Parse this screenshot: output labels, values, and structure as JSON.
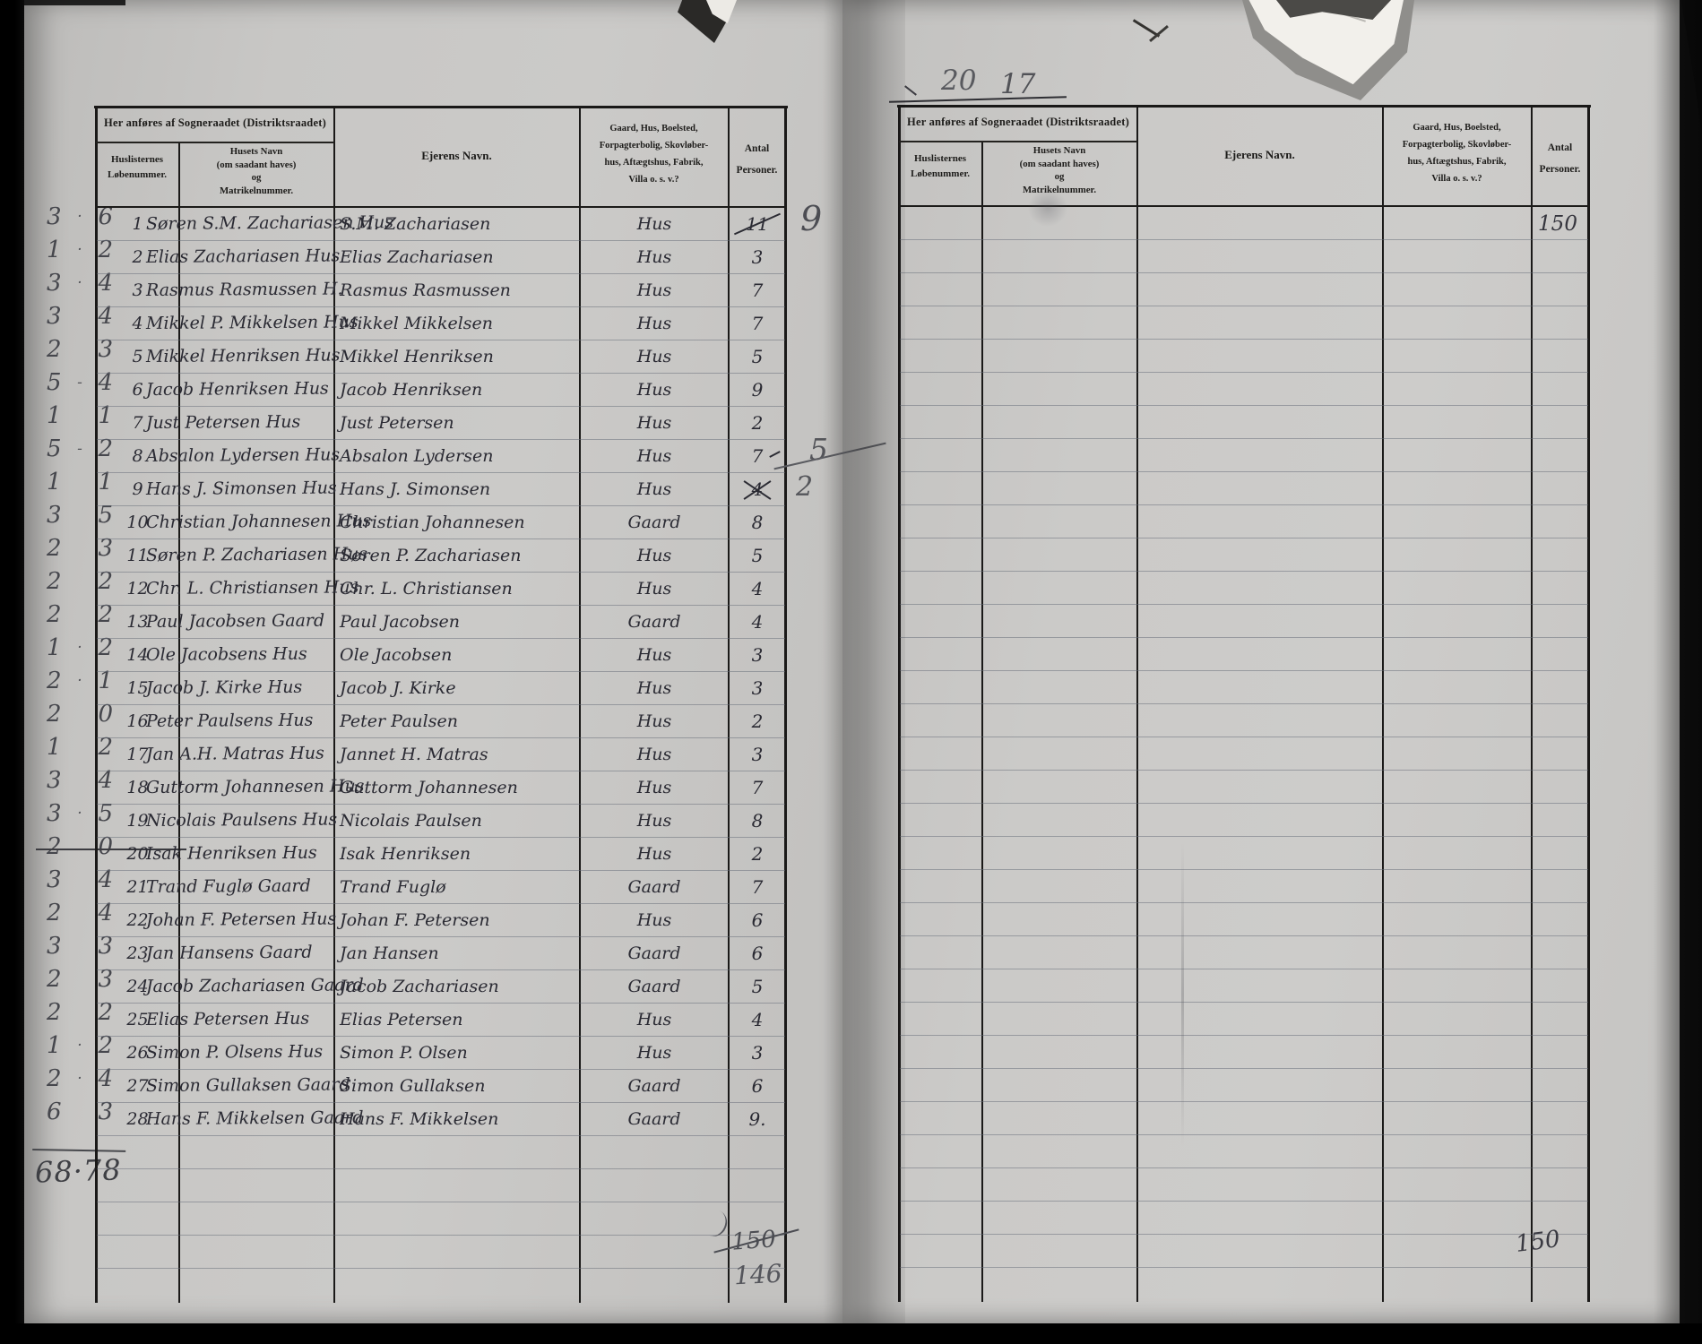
{
  "scan": {
    "paper_color": "#c8c7c5",
    "ink_color": "#1d1c1a",
    "handwriting_color": "#2a2a33",
    "pencil_color": "#54555a",
    "rule_color": "#646a76"
  },
  "column_headers": {
    "sogneraadet": "Her anføres af Sogneraadet (Distriktsraadet)",
    "huslisternes_1": "Huslisternes",
    "huslisternes_2": "Løbenummer.",
    "husets_navn_1": "Husets Navn",
    "husets_navn_2": "(om saadant haves)",
    "husets_navn_3": "og",
    "husets_navn_4": "Matrikelnummer.",
    "ejerens_navn": "Ejerens Navn.",
    "type_1": "Gaard, Hus, Boelsted,",
    "type_2": "Forpagterbolig, Skovløber-",
    "type_3": "hus, Aftægtshus, Fabrik,",
    "type_4": "Villa o. s. v.?",
    "antal_1": "Antal",
    "antal_2": "Personer."
  },
  "left_page": {
    "rows": [
      {
        "nr": "1",
        "house": "Søren S.M. Zachariasen Hus",
        "owner": "S.M. Zachariasen",
        "type": "Hus",
        "antal": "11",
        "mark": "strike",
        "pencil": "9"
      },
      {
        "nr": "2",
        "house": "Elias Zachariasen Hus",
        "owner": "Elias Zachariasen",
        "type": "Hus",
        "antal": "3"
      },
      {
        "nr": "3",
        "house": "Rasmus Rasmussen H.",
        "owner": "Rasmus Rasmussen",
        "type": "Hus",
        "antal": "7"
      },
      {
        "nr": "4",
        "house": "Mikkel P. Mikkelsen Hus",
        "owner": "Mikkel Mikkelsen",
        "type": "Hus",
        "antal": "7"
      },
      {
        "nr": "5",
        "house": "Mikkel Henriksen Hus",
        "owner": "Mikkel Henriksen",
        "type": "Hus",
        "antal": "5"
      },
      {
        "nr": "6",
        "house": "Jacob Henriksen Hus",
        "owner": "Jacob Henriksen",
        "type": "Hus",
        "antal": "9"
      },
      {
        "nr": "7",
        "house": "Just Petersen Hus",
        "owner": "Just Petersen",
        "type": "Hus",
        "antal": "2"
      },
      {
        "nr": "8",
        "house": "Absalon Lydersen Hus",
        "owner": "Absalon Lydersen",
        "type": "Hus",
        "antal": "7",
        "mark": "dash",
        "pencil": "5"
      },
      {
        "nr": "9",
        "house": "Hans J. Simonsen Hus",
        "owner": "Hans J. Simonsen",
        "type": "Hus",
        "antal": "4",
        "mark": "x",
        "pencil": "2"
      },
      {
        "nr": "10",
        "house": "Christian Johannesen Hus",
        "owner": "Christian Johannesen",
        "type": "Gaard",
        "antal": "8"
      },
      {
        "nr": "11",
        "house": "Søren P. Zachariasen Hus",
        "owner": "Søren P. Zachariasen",
        "type": "Hus",
        "antal": "5"
      },
      {
        "nr": "12",
        "house": "Chr. L. Christiansen Hus",
        "owner": "Chr. L. Christiansen",
        "type": "Hus",
        "antal": "4"
      },
      {
        "nr": "13",
        "house": "Paul Jacobsen Gaard",
        "owner": "Paul Jacobsen",
        "type": "Gaard",
        "antal": "4"
      },
      {
        "nr": "14",
        "house": "Ole Jacobsens Hus",
        "owner": "Ole Jacobsen",
        "type": "Hus",
        "antal": "3"
      },
      {
        "nr": "15",
        "house": "Jacob J. Kirke Hus",
        "owner": "Jacob J. Kirke",
        "type": "Hus",
        "antal": "3"
      },
      {
        "nr": "16",
        "house": "Peter Paulsens Hus",
        "owner": "Peter Paulsen",
        "type": "Hus",
        "antal": "2"
      },
      {
        "nr": "17",
        "house": "Jan A.H. Matras Hus",
        "owner": "Jannet H. Matras",
        "type": "Hus",
        "antal": "3"
      },
      {
        "nr": "18",
        "house": "Guttorm Johannesen Hus",
        "owner": "Guttorm Johannesen",
        "type": "Hus",
        "antal": "7"
      },
      {
        "nr": "19",
        "house": "Nicolais Paulsens Hus",
        "owner": "Nicolais Paulsen",
        "type": "Hus",
        "antal": "8"
      },
      {
        "nr": "20",
        "house": "Isak Henriksen Hus",
        "owner": "Isak Henriksen",
        "type": "Hus",
        "antal": "2"
      },
      {
        "nr": "21",
        "house": "Trand Fuglø Gaard",
        "owner": "Trand Fuglø",
        "type": "Gaard",
        "antal": "7"
      },
      {
        "nr": "22",
        "house": "Johan F. Petersen Hus",
        "owner": "Johan F. Petersen",
        "type": "Hus",
        "antal": "6"
      },
      {
        "nr": "23",
        "house": "Jan Hansens Gaard",
        "owner": "Jan Hansen",
        "type": "Gaard",
        "antal": "6"
      },
      {
        "nr": "24",
        "house": "Jacob Zachariasen Gaard",
        "owner": "Jacob Zachariasen",
        "type": "Gaard",
        "antal": "5"
      },
      {
        "nr": "25",
        "house": "Elias Petersen Hus",
        "owner": "Elias Petersen",
        "type": "Hus",
        "antal": "4"
      },
      {
        "nr": "26",
        "house": "Simon P. Olsens Hus",
        "owner": "Simon P. Olsen",
        "type": "Hus",
        "antal": "3"
      },
      {
        "nr": "27",
        "house": "Simon Gullaksen Gaard",
        "owner": "Simon Gullaksen",
        "type": "Gaard",
        "antal": "6"
      },
      {
        "nr": "28",
        "house": "Hans F. Mikkelsen Gaard",
        "owner": "Hans F. Mikkelsen",
        "type": "Gaard",
        "antal": "9."
      }
    ],
    "margin_tallies": [
      {
        "a": "3",
        "s": "·",
        "b": "6"
      },
      {
        "a": "1",
        "s": "·",
        "b": "2"
      },
      {
        "a": "3",
        "s": "·",
        "b": "4"
      },
      {
        "a": "3",
        "s": "",
        "b": "4"
      },
      {
        "a": "2",
        "s": "",
        "b": "3"
      },
      {
        "a": "5",
        "s": "-",
        "b": "4"
      },
      {
        "a": "1",
        "s": "",
        "b": "1"
      },
      {
        "a": "5",
        "s": "-",
        "b": "2"
      },
      {
        "a": "1",
        "s": "",
        "b": "1"
      },
      {
        "a": "3",
        "s": "",
        "b": "5"
      },
      {
        "a": "2",
        "s": "",
        "b": "3"
      },
      {
        "a": "2",
        "s": "",
        "b": "2"
      },
      {
        "a": "2",
        "s": "",
        "b": "2"
      },
      {
        "a": "1",
        "s": "·",
        "b": "2"
      },
      {
        "a": "2",
        "s": "·",
        "b": "1"
      },
      {
        "a": "2",
        "s": "",
        "b": "0"
      },
      {
        "a": "1",
        "s": "",
        "b": "2"
      },
      {
        "a": "3",
        "s": "",
        "b": "4"
      },
      {
        "a": "3",
        "s": "·",
        "b": "5"
      },
      {
        "a": "2",
        "s": "",
        "b": "0",
        "struck": true
      },
      {
        "a": "3",
        "s": "",
        "b": "4"
      },
      {
        "a": "2",
        "s": "",
        "b": "4"
      },
      {
        "a": "3",
        "s": "",
        "b": "3"
      },
      {
        "a": "2",
        "s": "",
        "b": "3"
      },
      {
        "a": "2",
        "s": "",
        "b": "2"
      },
      {
        "a": "1",
        "s": "·",
        "b": "2"
      },
      {
        "a": "2",
        "s": "·",
        "b": "4"
      },
      {
        "a": "6",
        "s": "",
        "b": "3"
      }
    ],
    "margin_total": "68·78",
    "corrections": {
      "row1": "9",
      "row8": "5",
      "row9": "2"
    },
    "bottom_total_struck": "150",
    "bottom_total_revised": "146"
  },
  "right_page": {
    "pencil_top_left": "20",
    "pencil_top_right": "17",
    "first_row_total": "150",
    "bottom_total": "150"
  }
}
